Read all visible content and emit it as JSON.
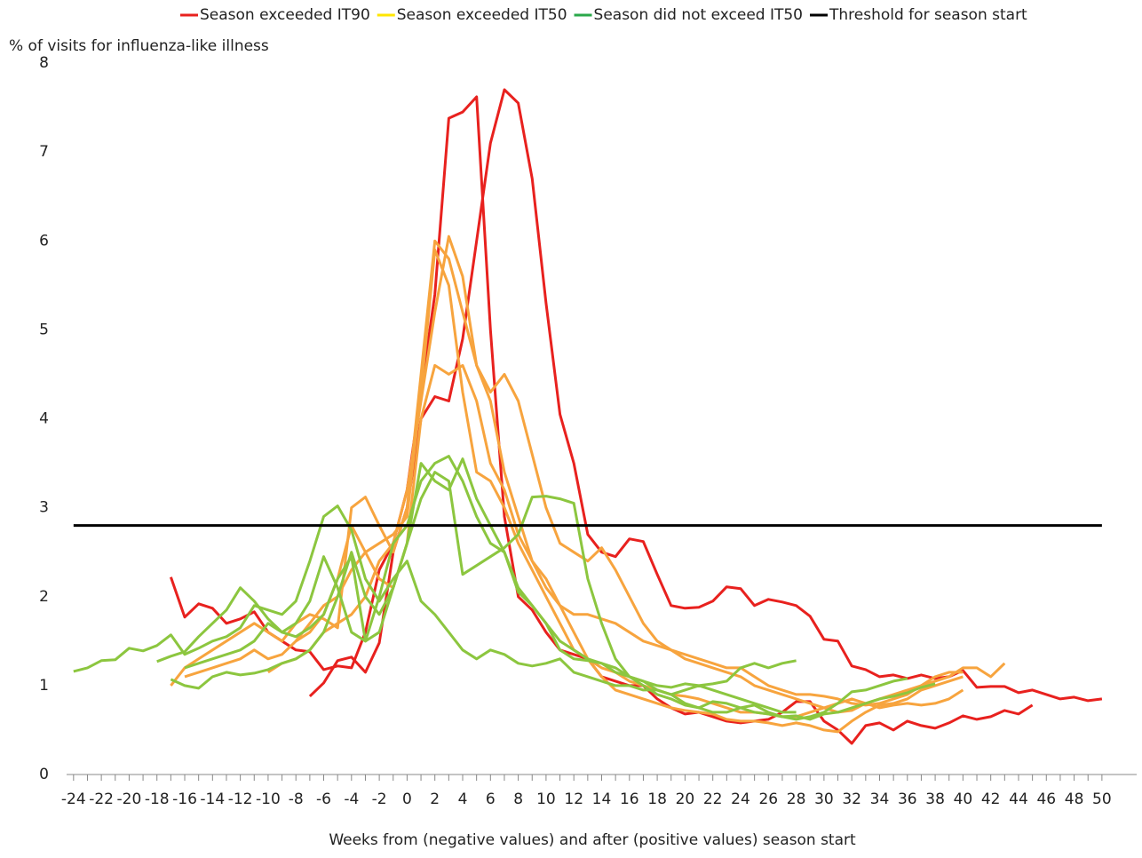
{
  "chart_data": {
    "type": "line",
    "y_label": "% of visits for influenza-like illness",
    "x_label": "Weeks from (negative values) and after (positive values) season start",
    "x": [
      -24,
      -23,
      -22,
      -21,
      -20,
      -19,
      -18,
      -17,
      -16,
      -15,
      -14,
      -13,
      -12,
      -11,
      -10,
      -9,
      -8,
      -7,
      -6,
      -5,
      -4,
      -3,
      -2,
      -1,
      0,
      1,
      2,
      3,
      4,
      5,
      6,
      7,
      8,
      9,
      10,
      11,
      12,
      13,
      14,
      15,
      16,
      17,
      18,
      19,
      20,
      21,
      22,
      23,
      24,
      25,
      26,
      27,
      28,
      29,
      30,
      31,
      32,
      33,
      34,
      35,
      36,
      37,
      38,
      39,
      40,
      41,
      42,
      43,
      44,
      45,
      46,
      47,
      48,
      49,
      50
    ],
    "xlim": [
      -24.5,
      52.5
    ],
    "xticks": [
      -24,
      -22,
      -20,
      -18,
      -16,
      -14,
      -12,
      -10,
      -8,
      -6,
      -4,
      -2,
      0,
      2,
      4,
      6,
      8,
      10,
      12,
      14,
      16,
      18,
      20,
      22,
      24,
      26,
      28,
      30,
      32,
      34,
      36,
      38,
      40,
      42,
      44,
      46,
      48,
      50
    ],
    "ylim": [
      0,
      8
    ],
    "yticks": [
      0,
      1,
      2,
      3,
      4,
      5,
      6,
      7,
      8
    ],
    "series": [
      {
        "name": "Season exceeded IT90",
        "color": "#e8211e",
        "line_color": "#e8211e",
        "lines": [
          {
            "values": [
              null,
              null,
              null,
              null,
              null,
              null,
              null,
              2.22,
              1.77,
              1.92,
              1.87,
              1.7,
              1.75,
              1.83,
              1.6,
              1.5,
              1.4,
              1.38,
              1.18,
              1.22,
              1.2,
              1.6,
              2.3,
              2.6,
              3.2,
              4.3,
              5.4,
              7.38,
              7.45,
              7.62,
              5.0,
              2.9,
              2.0,
              1.85,
              1.6,
              1.4,
              1.35,
              1.3,
              1.1,
              1.05,
              1.0,
              1.0,
              0.85,
              0.75,
              0.68,
              0.7,
              0.65,
              0.6,
              0.58,
              0.6,
              0.62,
              0.7,
              0.82,
              0.82,
              0.6,
              0.5,
              0.35,
              0.55,
              0.58,
              0.5,
              0.6,
              0.55,
              0.52,
              0.58,
              0.66,
              0.62,
              0.65,
              0.72,
              0.68,
              0.78,
              null,
              null,
              null,
              null,
              null
            ]
          },
          {
            "values": [
              null,
              null,
              null,
              null,
              null,
              null,
              null,
              null,
              null,
              null,
              null,
              null,
              null,
              null,
              null,
              null,
              null,
              0.88,
              1.03,
              1.28,
              1.32,
              1.15,
              1.48,
              2.5,
              3.0,
              4.0,
              4.25,
              4.2,
              4.9,
              6.0,
              7.1,
              7.7,
              7.55,
              6.7,
              5.3,
              4.05,
              3.5,
              2.7,
              2.5,
              2.45,
              2.65,
              2.62,
              2.25,
              1.9,
              1.87,
              1.88,
              1.95,
              2.11,
              2.09,
              1.9,
              1.97,
              1.94,
              1.9,
              1.78,
              1.52,
              1.5,
              1.22,
              1.18,
              1.1,
              1.12,
              1.08,
              1.12,
              1.08,
              1.1,
              1.17,
              0.98,
              0.99,
              0.99,
              0.92,
              0.95,
              0.9,
              0.85,
              0.87,
              0.83,
              0.85
            ]
          }
        ]
      },
      {
        "name": "Season exceeded IT50",
        "color": "#ffe600",
        "line_color": "#f7a43e",
        "lines": [
          {
            "values": [
              null,
              null,
              null,
              null,
              null,
              null,
              null,
              1.0,
              1.2,
              1.3,
              1.4,
              1.5,
              1.6,
              1.7,
              1.6,
              1.5,
              1.7,
              1.8,
              1.75,
              1.65,
              3.0,
              3.12,
              2.8,
              2.5,
              3.0,
              4.5,
              6.0,
              5.8,
              5.2,
              4.6,
              4.2,
              3.4,
              2.9,
              2.4,
              2.1,
              1.9,
              1.8,
              1.8,
              1.75,
              1.7,
              1.6,
              1.5,
              1.45,
              1.4,
              1.35,
              1.3,
              1.25,
              1.2,
              1.2,
              1.1,
              1.0,
              0.95,
              0.9,
              0.9,
              0.88,
              0.85,
              0.8,
              0.78,
              0.8,
              0.85,
              0.9,
              1.0,
              1.1,
              1.15,
              1.15,
              null,
              null,
              null,
              null,
              null,
              null,
              null,
              null,
              null,
              null
            ]
          },
          {
            "values": [
              null,
              null,
              null,
              null,
              null,
              null,
              null,
              null,
              null,
              null,
              null,
              null,
              null,
              null,
              1.15,
              1.25,
              1.3,
              1.4,
              1.6,
              1.7,
              1.8,
              2.0,
              2.4,
              2.6,
              3.2,
              4.2,
              5.2,
              6.05,
              5.6,
              4.6,
              4.3,
              4.5,
              4.2,
              3.6,
              3.0,
              2.6,
              2.5,
              2.4,
              2.55,
              2.3,
              2.0,
              1.7,
              1.5,
              1.4,
              1.3,
              1.25,
              1.2,
              1.15,
              1.1,
              1.0,
              0.95,
              0.9,
              0.85,
              0.8,
              0.75,
              0.7,
              0.72,
              0.8,
              0.85,
              0.9,
              0.95,
              1.0,
              1.05,
              1.1,
              1.2,
              1.2,
              1.1,
              1.25,
              null,
              null,
              null,
              null,
              null,
              null,
              null
            ]
          },
          {
            "values": [
              null,
              null,
              null,
              null,
              null,
              null,
              null,
              null,
              1.1,
              1.15,
              1.2,
              1.25,
              1.3,
              1.4,
              1.3,
              1.35,
              1.5,
              1.6,
              1.8,
              2.2,
              2.8,
              2.5,
              2.2,
              2.1,
              2.6,
              4.0,
              4.6,
              4.5,
              4.6,
              4.2,
              3.5,
              3.2,
              2.7,
              2.4,
              2.2,
              1.9,
              1.6,
              1.3,
              1.1,
              0.95,
              0.9,
              0.85,
              0.8,
              0.75,
              0.72,
              0.7,
              0.68,
              0.62,
              0.6,
              0.6,
              0.58,
              0.55,
              0.58,
              0.55,
              0.5,
              0.48,
              0.6,
              0.7,
              0.78,
              0.8,
              0.85,
              0.95,
              1.0,
              1.05,
              1.1,
              null,
              null,
              null,
              null,
              null,
              null,
              null,
              null,
              null,
              null
            ]
          },
          {
            "values": [
              null,
              null,
              null,
              null,
              null,
              null,
              null,
              null,
              null,
              null,
              null,
              null,
              null,
              null,
              null,
              null,
              1.5,
              1.7,
              1.9,
              2.0,
              2.3,
              2.5,
              2.6,
              2.7,
              2.9,
              4.3,
              5.9,
              5.5,
              4.3,
              3.4,
              3.3,
              3.0,
              2.6,
              2.3,
              2.0,
              1.7,
              1.4,
              1.3,
              1.2,
              1.15,
              1.05,
              1.0,
              0.95,
              0.9,
              0.88,
              0.85,
              0.8,
              0.75,
              0.7,
              0.7,
              0.68,
              0.65,
              0.65,
              0.7,
              0.75,
              0.8,
              0.85,
              0.8,
              0.75,
              0.78,
              0.8,
              0.78,
              0.8,
              0.85,
              0.95,
              null,
              null,
              null,
              null,
              null,
              null,
              null,
              null,
              null,
              null
            ]
          }
        ]
      },
      {
        "name": "Season did not exceed IT50",
        "color": "#2aa84a",
        "line_color": "#8cc63f",
        "lines": [
          {
            "values": [
              1.16,
              1.2,
              1.28,
              1.29,
              1.42,
              1.39,
              1.45,
              1.57,
              1.35,
              1.42,
              1.5,
              1.55,
              1.65,
              1.9,
              1.85,
              1.8,
              1.95,
              2.4,
              2.9,
              3.02,
              2.75,
              2.2,
              1.95,
              2.2,
              2.4,
              1.95,
              1.8,
              1.6,
              1.4,
              1.3,
              1.4,
              1.35,
              1.25,
              1.22,
              1.25,
              1.3,
              1.15,
              1.1,
              1.05,
              1.0,
              1.0,
              0.95,
              0.95,
              0.9,
              0.95,
              1.0,
              0.95,
              0.9,
              0.85,
              0.8,
              0.75,
              0.7,
              0.7,
              null,
              null,
              null,
              null,
              null,
              null,
              null,
              null,
              null,
              null,
              null,
              null,
              null,
              null,
              null,
              null,
              null,
              null,
              null,
              null,
              null,
              null
            ]
          },
          {
            "values": [
              null,
              null,
              null,
              null,
              null,
              null,
              1.27,
              1.33,
              1.38,
              1.55,
              1.7,
              1.85,
              2.1,
              1.95,
              1.75,
              1.6,
              1.7,
              1.95,
              2.45,
              2.1,
              1.6,
              1.5,
              2.0,
              2.6,
              2.8,
              3.3,
              3.5,
              3.58,
              3.3,
              2.9,
              2.6,
              2.5,
              2.05,
              1.9,
              1.7,
              1.4,
              1.3,
              1.28,
              1.25,
              1.15,
              1.1,
              1.05,
              0.95,
              0.9,
              0.8,
              0.75,
              0.82,
              0.8,
              0.75,
              0.7,
              0.68,
              0.65,
              0.66,
              0.62,
              0.68,
              0.7,
              0.75,
              0.8,
              0.85,
              0.88,
              0.92,
              0.98,
              1.02,
              null,
              null,
              null,
              null,
              null,
              null,
              null,
              null,
              null,
              null,
              null,
              null
            ]
          },
          {
            "values": [
              null,
              null,
              null,
              null,
              null,
              null,
              null,
              1.07,
              1.0,
              0.97,
              1.1,
              1.15,
              1.12,
              1.14,
              1.18,
              1.25,
              1.3,
              1.4,
              1.6,
              2.0,
              2.5,
              2.0,
              1.8,
              2.1,
              2.6,
              3.1,
              3.4,
              3.3,
              2.25,
              2.35,
              2.45,
              2.55,
              2.7,
              3.12,
              3.13,
              3.1,
              3.05,
              2.2,
              1.7,
              1.3,
              1.1,
              1.05,
              1.0,
              0.98,
              1.02,
              1.0,
              1.02,
              1.05,
              1.2,
              1.25,
              1.2,
              1.25,
              1.28,
              null,
              null,
              null,
              null,
              null,
              null,
              null,
              null,
              null,
              null,
              null,
              null,
              null,
              null,
              null,
              null,
              null,
              null,
              null,
              null,
              null,
              null
            ]
          },
          {
            "values": [
              null,
              null,
              null,
              null,
              null,
              null,
              null,
              null,
              1.2,
              1.25,
              1.3,
              1.35,
              1.4,
              1.5,
              1.7,
              1.6,
              1.55,
              1.65,
              1.8,
              2.2,
              2.45,
              1.5,
              1.6,
              2.1,
              2.6,
              3.5,
              3.3,
              3.2,
              3.55,
              3.1,
              2.8,
              2.5,
              2.1,
              1.9,
              1.7,
              1.5,
              1.4,
              1.3,
              1.25,
              1.2,
              1.1,
              1.0,
              0.9,
              0.85,
              0.78,
              0.75,
              0.7,
              0.7,
              0.75,
              0.78,
              0.7,
              0.65,
              0.62,
              0.65,
              0.7,
              0.8,
              0.93,
              0.95,
              1.0,
              1.05,
              1.08,
              null,
              null,
              null,
              null,
              null,
              null,
              null,
              null,
              null,
              null,
              null,
              null,
              null,
              null
            ]
          }
        ]
      }
    ],
    "threshold": {
      "name": "Threshold for season start",
      "color": "#000000",
      "value": 2.8
    }
  }
}
